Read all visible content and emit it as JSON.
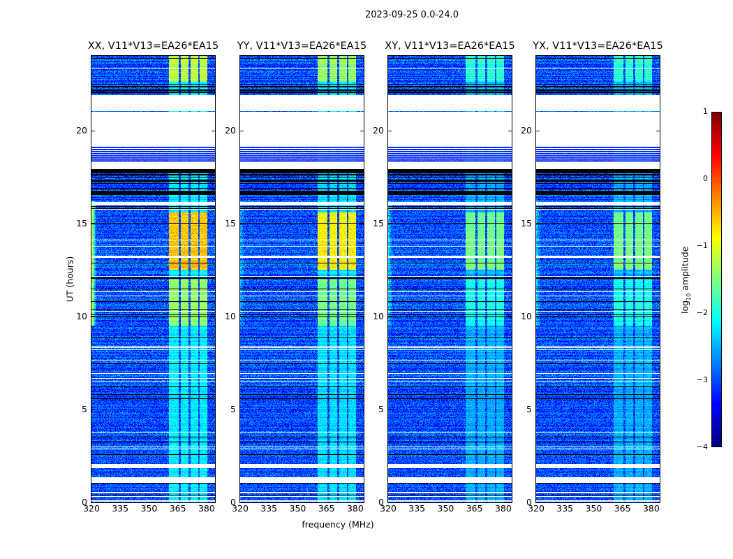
{
  "suptitle": "2023-09-25 0.0-24.0",
  "xlabel": "frequency (MHz)",
  "ylabel": "UT (hours)",
  "colorbar": {
    "label_prefix": "log",
    "label_sub": "10",
    "label_suffix": " amplitude",
    "range": [
      -4,
      1
    ],
    "ticks": [
      "1",
      "0",
      "−1",
      "−2",
      "−3",
      "−4"
    ],
    "colormap": "jet"
  },
  "chart_data": {
    "type": "heatmap",
    "xlim": [
      320,
      384.4
    ],
    "ylim": [
      0,
      24
    ],
    "xticks": [
      "320",
      "335",
      "350",
      "365",
      "380"
    ],
    "yticks": [
      "0",
      "5",
      "10",
      "15",
      "20"
    ],
    "clim": [
      -4,
      1
    ],
    "panels": [
      {
        "title": "XX, V11*V13=EA26*EA15",
        "band_gain": 1.0,
        "edge_gain": 1.0
      },
      {
        "title": "YY, V11*V13=EA26*EA15",
        "band_gain": 0.9,
        "edge_gain": 0.2
      },
      {
        "title": "XY, V11*V13=EA26*EA15",
        "band_gain": 0.6,
        "edge_gain": 0.3
      },
      {
        "title": "YX, V11*V13=EA26*EA15",
        "band_gain": 0.6,
        "edge_gain": 0.3
      }
    ],
    "base_log_amplitude": -3.0,
    "rfi_band_mhz": [
      360.5,
      380.5
    ],
    "rfi_band_gaps_mhz": [
      366,
      371,
      376
    ],
    "rfi_levels": [
      {
        "ut": [
          22.6,
          24.0
        ],
        "level": -1.2
      },
      {
        "ut": [
          12.5,
          15.6
        ],
        "level": -0.6
      },
      {
        "ut": [
          9.5,
          12.0
        ],
        "level": -1.4
      },
      {
        "ut": [
          0,
          24
        ],
        "level": -2.2
      }
    ],
    "blank_ut_ranges": [
      [
        19.1,
        20.98
      ],
      [
        21.05,
        21.9
      ],
      [
        17.9,
        18.3
      ],
      [
        15.95,
        16.15
      ],
      [
        1.85,
        2.05
      ],
      [
        1.1,
        1.35
      ],
      [
        0.5,
        0.58
      ]
    ],
    "striped_ut_ranges": [
      [
        18.3,
        19.1
      ]
    ],
    "flagged_ut_ranges": [
      [
        22.0,
        22.5
      ],
      [
        16.5,
        17.9
      ],
      [
        11.95,
        12.1
      ],
      [
        0.9,
        1.05
      ]
    ]
  }
}
